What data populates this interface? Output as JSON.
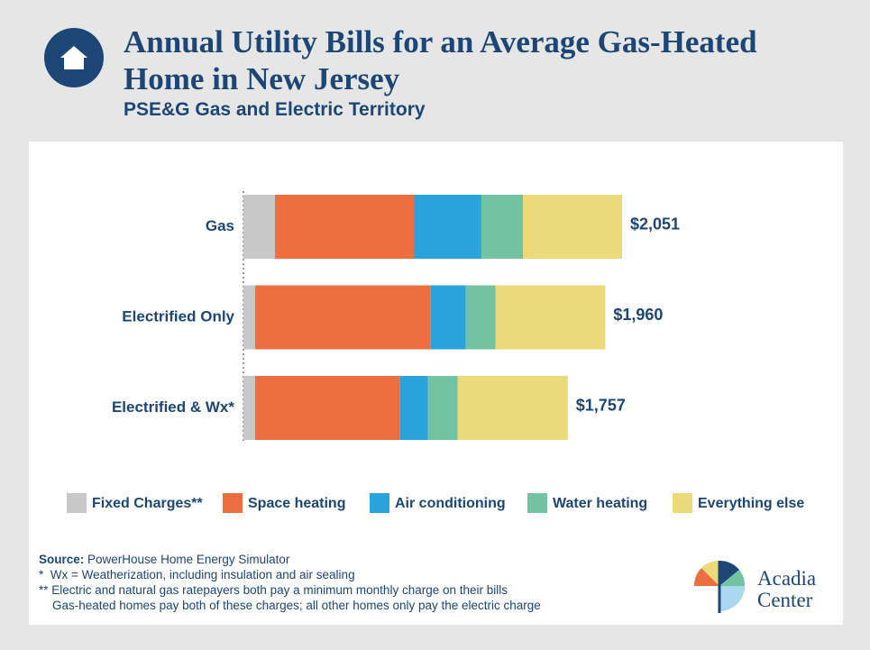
{
  "chart_data": {
    "type": "stacked-bar-horizontal",
    "title": "Annual Utility Bills for an Average Gas-Heated Home in New Jersey",
    "subtitle": "PSE&G Gas and Electric Territory",
    "categories": [
      "Gas",
      "Electrified Only",
      "Electrified & Wx*"
    ],
    "series": [
      {
        "name": "Fixed Charges**",
        "color": "#c8c8c8",
        "values": [
          171,
          63,
          63
        ]
      },
      {
        "name": "Space heating",
        "color": "#ed6f3f",
        "values": [
          752,
          952,
          786
        ]
      },
      {
        "name": "Air conditioning",
        "color": "#2aa3dc",
        "values": [
          366,
          190,
          151
        ]
      },
      {
        "name": "Water heating",
        "color": "#72c3a1",
        "values": [
          225,
          161,
          161
        ]
      },
      {
        "name": "Everything else",
        "color": "#ebd97a",
        "values": [
          537,
          594,
          596
        ]
      }
    ],
    "totals": [
      2051,
      1960,
      1757
    ],
    "total_labels": [
      "$2,051",
      "$1,960",
      "$1,757"
    ],
    "legend": "bottom"
  },
  "notes": {
    "source_label": "Source:",
    "source": "PowerHouse Home Energy Simulator",
    "footnotes": [
      "*  Wx = Weatherization, including insulation and air sealing",
      "** Electric and natural gas ratepayers both pay a minimum monthly charge on their bills",
      "    Gas-heated homes pay both of these charges; all other homes only pay the electric charge"
    ]
  },
  "logo": {
    "lines": [
      "Acadia",
      "Center"
    ]
  }
}
